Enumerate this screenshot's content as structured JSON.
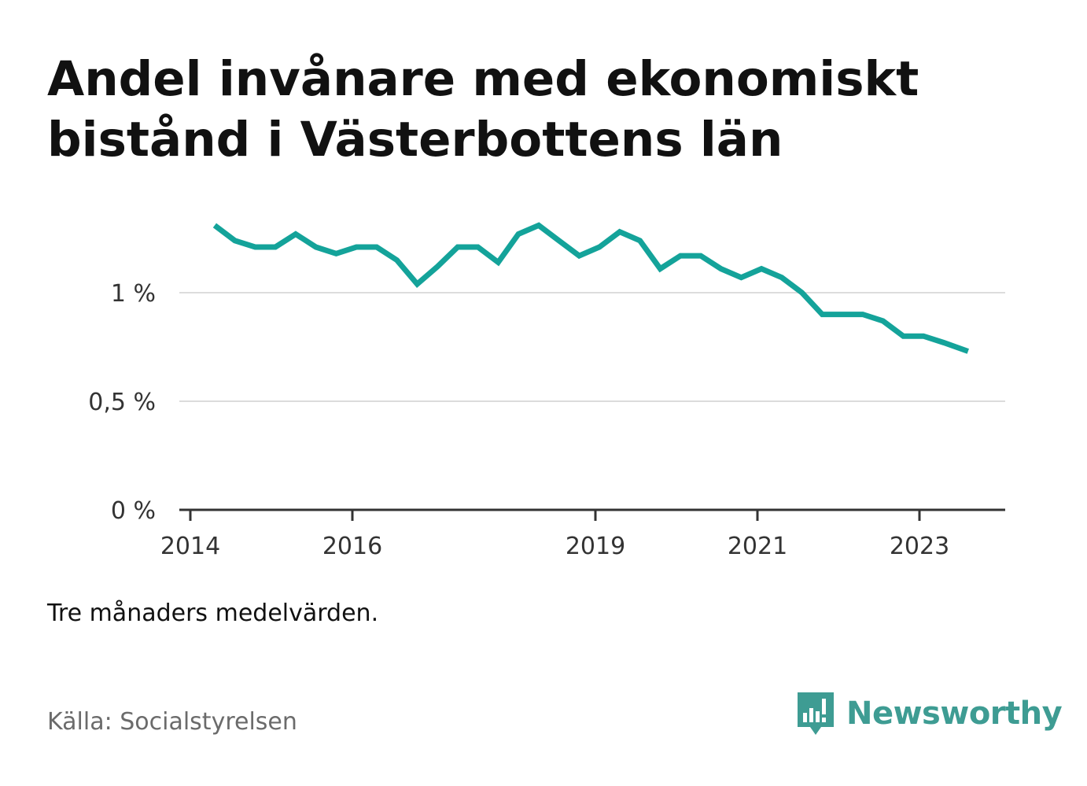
{
  "title": "Andel invånare med ekonomiskt bistånd i Västerbottens län",
  "note": "Tre månaders medelvärden.",
  "source": "Källa: Socialstyrelsen",
  "logo_text": "Newsworthy",
  "colors": {
    "line": "#14a39a",
    "grid": "#dcdcdc",
    "axis": "#333333",
    "logo": "#3e9c93"
  },
  "chart_data": {
    "type": "line",
    "x_axis": {
      "min": 2014.0,
      "max": 2024.0,
      "ticks": [
        2014,
        2016,
        2019,
        2021,
        2023
      ],
      "tick_labels": [
        "2014",
        "2016",
        "2019",
        "2021",
        "2023"
      ]
    },
    "y_axis": {
      "min": 0,
      "max": 1.3,
      "ticks": [
        0,
        0.5,
        1.0
      ],
      "tick_labels": [
        "0 %",
        "0,5 %",
        "1 %"
      ]
    },
    "grid": true,
    "series": [
      {
        "x": [
          2014.3,
          2014.55,
          2014.8,
          2015.05,
          2015.3,
          2015.55,
          2015.8,
          2016.05,
          2016.3,
          2016.55,
          2016.8,
          2017.05,
          2017.3,
          2017.55,
          2017.8,
          2018.05,
          2018.3,
          2018.55,
          2018.8,
          2019.05,
          2019.3,
          2019.55,
          2019.8,
          2020.05,
          2020.3,
          2020.55,
          2020.8,
          2021.05,
          2021.3,
          2021.55,
          2021.8,
          2022.05,
          2022.3,
          2022.55,
          2022.8,
          2023.05,
          2023.3,
          2023.6
        ],
        "y": [
          1.31,
          1.24,
          1.21,
          1.21,
          1.27,
          1.21,
          1.18,
          1.21,
          1.21,
          1.15,
          1.04,
          1.12,
          1.21,
          1.21,
          1.14,
          1.27,
          1.31,
          1.24,
          1.17,
          1.21,
          1.28,
          1.24,
          1.11,
          1.17,
          1.17,
          1.11,
          1.07,
          1.11,
          1.07,
          1.0,
          0.9,
          0.9,
          0.9,
          0.87,
          0.8,
          0.8,
          0.77,
          0.73
        ]
      }
    ]
  }
}
